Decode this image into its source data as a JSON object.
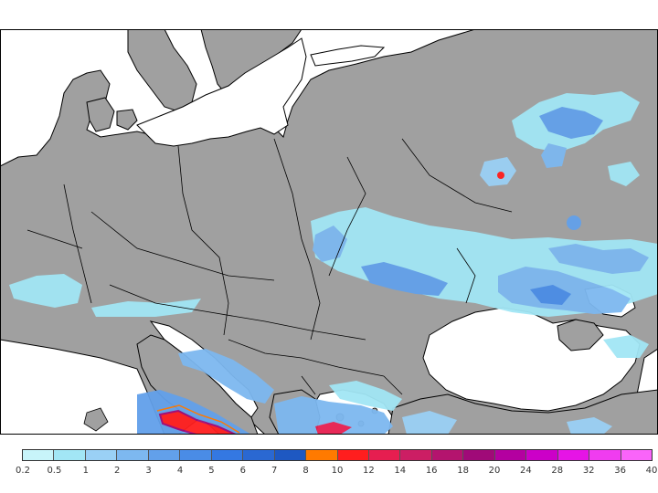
{
  "map": {
    "region": "Eastern Europe / Balkans / Black Sea",
    "land_color": "#a0a0a0",
    "water_color": "#ffffff",
    "border_color": "#000000"
  },
  "legend": {
    "labels": [
      "0.2",
      "0.5",
      "1",
      "2",
      "3",
      "4",
      "5",
      "6",
      "7",
      "8",
      "10",
      "12",
      "14",
      "16",
      "18",
      "20",
      "24",
      "28",
      "32",
      "36",
      "40"
    ],
    "colors": [
      "#c8f4fa",
      "#a2e6f5",
      "#9ad0f5",
      "#7db8f0",
      "#62a0ea",
      "#4a8ce6",
      "#3478e2",
      "#2a68d2",
      "#1e58c2",
      "#ff7a00",
      "#ff1e1e",
      "#e61e50",
      "#cc1e64",
      "#b4146e",
      "#a00a78",
      "#b400a0",
      "#cc00c8",
      "#e614e6",
      "#f03cf0",
      "#fa64fa"
    ]
  },
  "precip_areas": [
    {
      "name": "central-russia-north",
      "level": 1
    },
    {
      "name": "central-russia-core",
      "level": 4
    },
    {
      "name": "central-russia-point",
      "level": 11
    },
    {
      "name": "ukraine-belarus",
      "level": 2
    },
    {
      "name": "ukraine-center",
      "level": 4
    },
    {
      "name": "southern-russia",
      "level": 3
    },
    {
      "name": "alps-switzerland",
      "level": 1
    },
    {
      "name": "north-italy",
      "level": 1
    },
    {
      "name": "adriatic-croatia",
      "level": 3
    },
    {
      "name": "southern-italy",
      "level": 4
    },
    {
      "name": "southern-italy-core",
      "level": 12
    },
    {
      "name": "southern-greece-coast",
      "level": 12
    },
    {
      "name": "greece-aegean",
      "level": 3
    },
    {
      "name": "turkey-east",
      "level": 2
    },
    {
      "name": "russia-volga",
      "level": 3
    }
  ]
}
